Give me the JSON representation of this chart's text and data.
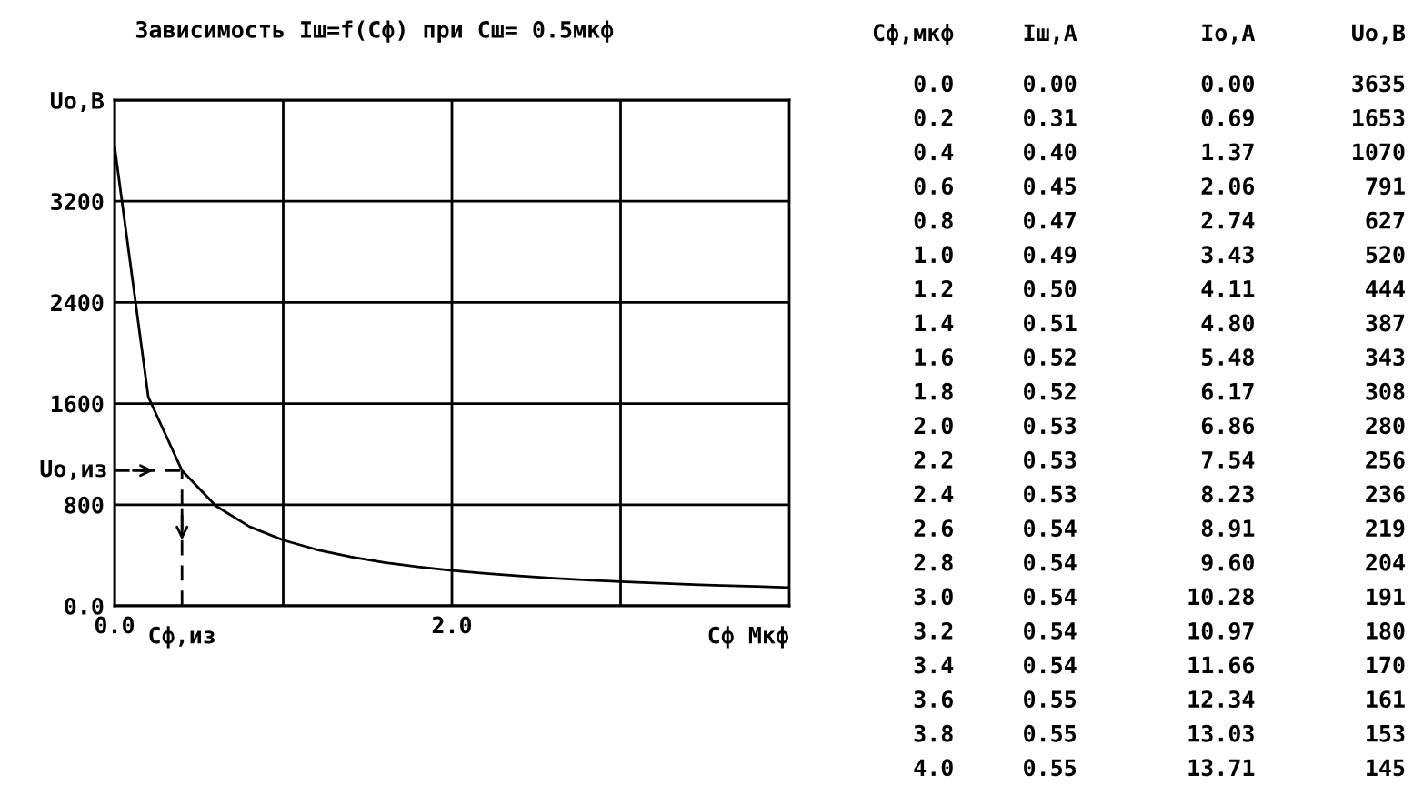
{
  "chart_data": [
    {
      "type": "line",
      "title": "Зависимость Iш=f(Cф) при Cш= 0.5мкф",
      "xlabel": "Cф Mкф",
      "grid": true,
      "marker": "none",
      "line_style": "solid",
      "x": [
        0.0,
        0.2,
        0.4,
        0.6,
        0.8,
        1.0,
        1.2,
        1.4,
        1.6,
        1.8,
        2.0,
        2.2,
        2.4,
        2.6,
        2.8,
        3.0,
        3.2,
        3.4,
        3.6,
        3.8,
        4.0
      ],
      "series": [
        {
          "color": "#000000",
          "values": [
            3635,
            1653,
            1070,
            791,
            627,
            520,
            444,
            387,
            343,
            308,
            280,
            256,
            236,
            219,
            204,
            191,
            180,
            170,
            161,
            153,
            145
          ]
        }
      ],
      "xlim": [
        0,
        4
      ],
      "xticks": [
        {
          "value": 0,
          "label": "0.0"
        },
        {
          "value": 1,
          "label": null
        },
        {
          "value": 2,
          "label": "2.0"
        },
        {
          "value": 3,
          "label": null
        }
      ],
      "ylim": [
        0,
        4000
      ],
      "yticks": [
        {
          "value": 0,
          "label": "0.0"
        },
        800,
        1600,
        2400,
        3200,
        {
          "value": 4000,
          "label": "Uo,В"
        }
      ],
      "ref_lines": [
        {
          "axis": "x",
          "value": 0.4,
          "label": "Cф,из",
          "line_style": "dashed",
          "color": "#000000"
        },
        {
          "axis": "y",
          "value": 1070,
          "label": "Uo,из",
          "line_style": "dashed",
          "color": "#000000"
        }
      ]
    },
    {
      "type": "other",
      "annotations": [
        "Cф,мкф     Iш,A         Io,A       Uo,В",
        "   0.0     0.00         0.00       3635",
        "   0.2     0.31         0.69       1653",
        "   0.4     0.40         1.37       1070",
        "   0.6     0.45         2.06        791",
        "   0.8     0.47         2.74        627",
        "   1.0     0.49         3.43        520",
        "   1.2     0.50         4.11        444",
        "   1.4     0.51         4.80        387",
        "   1.6     0.52         5.48        343",
        "   1.8     0.52         6.17        308",
        "   2.0     0.53         6.86        280",
        "   2.2     0.53         7.54        256",
        "   2.4     0.53         8.23        236",
        "   2.6     0.54         8.91        219",
        "   2.8     0.54         9.60        204",
        "   3.0     0.54        10.28        191",
        "   3.2     0.54        10.97        180",
        "   3.4     0.54        11.66        170",
        "   3.6     0.55        12.34        161",
        "   3.8     0.55        13.03        153",
        "   4.0     0.55        13.71        145"
      ]
    }
  ]
}
